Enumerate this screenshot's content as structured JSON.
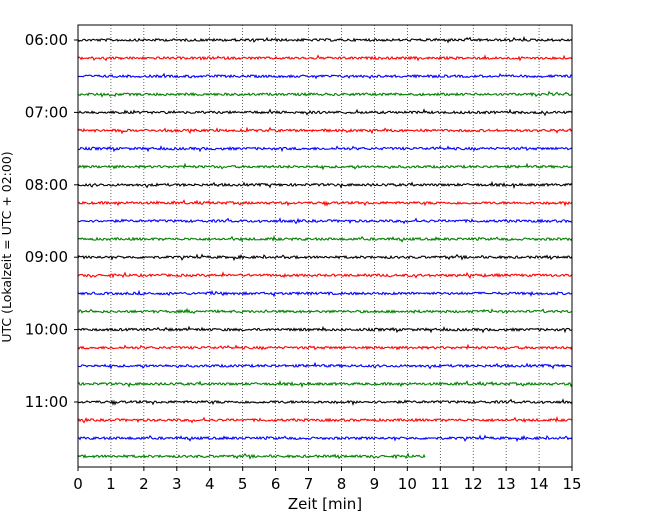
{
  "chart_data": {
    "type": "line",
    "xlabel": "Zeit  [min]",
    "ylabel": "UTC (Lokalzeit = UTC + 02:00)",
    "xlim": [
      0,
      15
    ],
    "x_ticks": [
      "0",
      "1",
      "2",
      "3",
      "4",
      "5",
      "6",
      "7",
      "8",
      "9",
      "10",
      "11",
      "12",
      "13",
      "14",
      "15"
    ],
    "y_ticks": [
      "06:00",
      "07:00",
      "08:00",
      "09:00",
      "10:00",
      "11:00"
    ],
    "trace_start_times": [
      "06:00",
      "06:15",
      "06:30",
      "06:45",
      "07:00",
      "07:15",
      "07:30",
      "07:45",
      "08:00",
      "08:15",
      "08:30",
      "08:45",
      "09:00",
      "09:15",
      "09:30",
      "09:45",
      "10:00",
      "10:15",
      "10:30",
      "10:45",
      "11:00",
      "11:15",
      "11:30",
      "11:45"
    ],
    "trace_colors": [
      "#000000",
      "#ff0000",
      "#0000ff",
      "#008000"
    ],
    "last_trace_end_min": 10.55,
    "grid": "vertical dotted lines at each minute"
  }
}
